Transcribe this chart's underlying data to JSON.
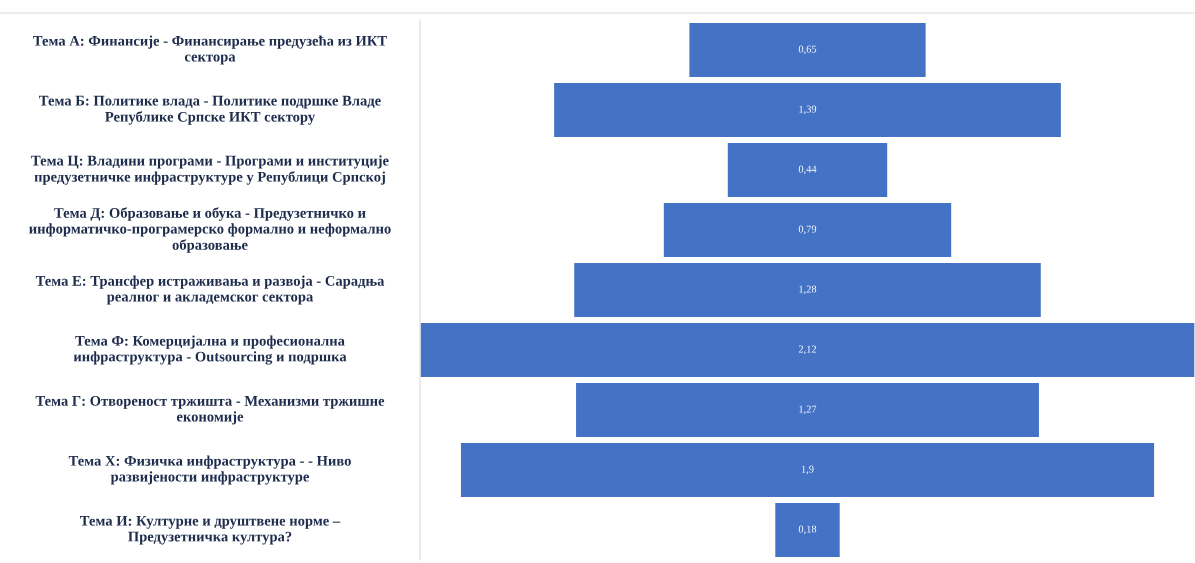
{
  "chart_data": {
    "type": "other",
    "categories": [
      "Тема А: Финансије - Финансирање предузећа из ИКТ\nсектора",
      "Тема Б: Политике влада - Политике подршке Владе\nРепублике Српске ИКТ сектору",
      "Тема Ц: Владини програми - Програми и институције\nпредузетничке инфраструктуре у Републици Српској",
      "Тема Д: Образовање и обука - Предузетничко и\nинформатичко-програмерско формално и неформално\nобразовање",
      "Тема Е: Трансфер истраживања и развоја - Сарадња\nреалног и акладемског сектора",
      "Тема Ф: Комерцијална и професионална\nинфраструктура - Outsourcing и подршка",
      "Тема Г: Отвореност тржишта - Механизми тржишне\nекономије",
      "Тема Х: Физичка инфраструктура - - Ниво\nразвијености инфраструктуре",
      "Тема И: Културне и друштвене норме –\nПредузетничка култура?"
    ],
    "values": [
      0.65,
      1.39,
      0.44,
      0.79,
      1.28,
      2.12,
      1.27,
      1.9,
      0.18
    ],
    "value_labels": [
      "0,65",
      "1,39",
      "0,44",
      "0,79",
      "1,28",
      "2,12",
      "1,27",
      "1,9",
      "0,18"
    ],
    "color": "#4472c4"
  }
}
